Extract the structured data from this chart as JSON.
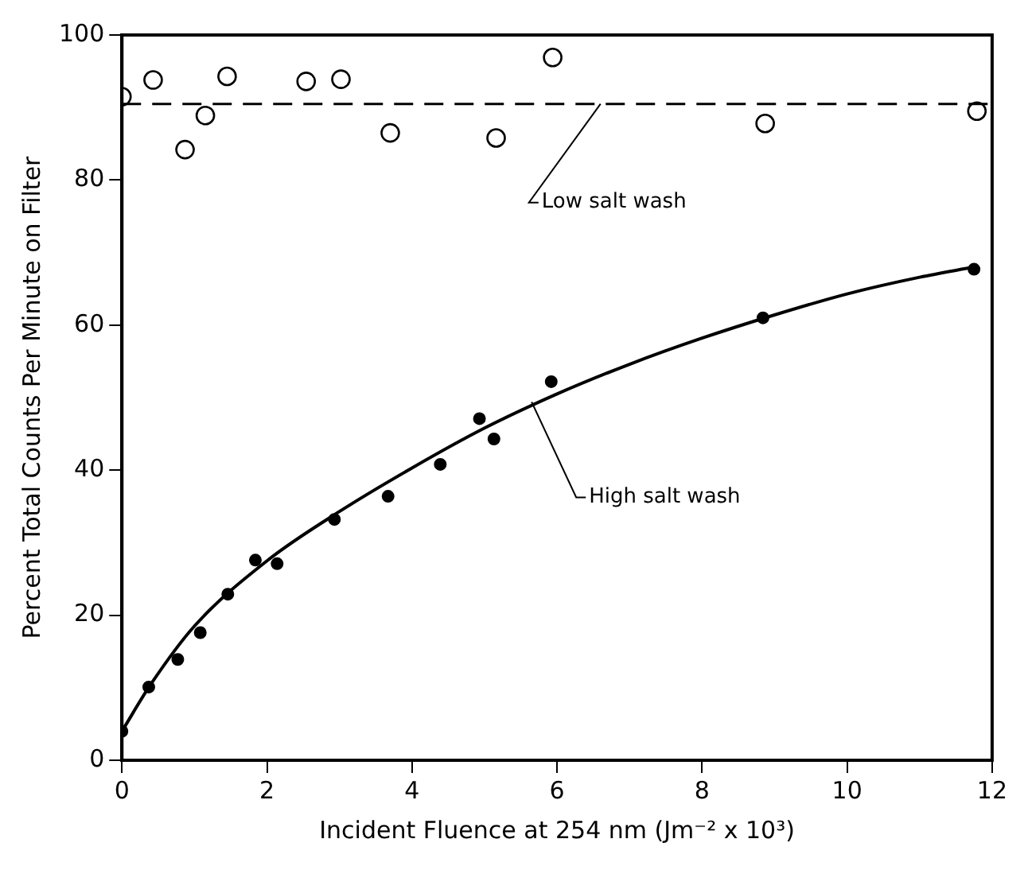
{
  "chart_data": {
    "type": "scatter",
    "xlabel": "Incident Fluence at 254 nm (Jm⁻² x 10³)",
    "ylabel": "Percent Total Counts Per Minute on Filter",
    "xlim": [
      0,
      12
    ],
    "xticks": [
      0,
      2,
      4,
      6,
      8,
      10,
      12
    ],
    "ylim": [
      0,
      100
    ],
    "yticks": [
      0,
      20,
      40,
      60,
      80,
      100
    ],
    "grid": false,
    "legend": false,
    "series": [
      {
        "type": "scatter",
        "marker": "circle",
        "color": "#000000",
        "x": [
          0,
          0.43,
          0.87,
          1.15,
          1.45,
          2.54,
          3.02,
          3.7,
          5.16,
          5.94,
          8.87,
          11.79
        ],
        "values": [
          91.5,
          93.8,
          84.2,
          88.9,
          94.3,
          93.6,
          93.9,
          86.5,
          85.8,
          96.9,
          87.8,
          89.5
        ]
      },
      {
        "type": "scatter",
        "marker": "circle",
        "color": "#000000",
        "x": [
          0,
          0.37,
          0.77,
          1.08,
          1.46,
          1.84,
          2.14,
          2.93,
          3.67,
          4.39,
          4.93,
          5.13,
          5.92,
          8.84,
          11.75
        ],
        "values": [
          4.0,
          10.1,
          13.9,
          17.6,
          22.9,
          27.6,
          27.1,
          33.2,
          36.4,
          40.8,
          47.1,
          44.3,
          52.2,
          61.0,
          67.7
        ]
      },
      {
        "type": "line",
        "marker": "none",
        "color": "#000000",
        "line_style": "solid",
        "x": [
          0,
          0.4,
          1,
          2,
          3,
          4,
          5,
          6,
          7,
          8,
          9,
          10,
          11,
          11.75
        ],
        "values": [
          4,
          10.5,
          18.5,
          27.5,
          34.3,
          40.3,
          45.8,
          50.5,
          54.6,
          58.2,
          61.4,
          64.3,
          66.6,
          68
        ]
      }
    ],
    "ref_lines": [
      {
        "axis": "y",
        "value": 90.5,
        "line_style": "dashed",
        "color": "#000000"
      }
    ],
    "annotations": [
      {
        "text": "Low salt wash",
        "x": 6.6,
        "y": 90.5
      },
      {
        "text": "High salt wash",
        "x": 5.65,
        "y": 49.4
      }
    ]
  }
}
